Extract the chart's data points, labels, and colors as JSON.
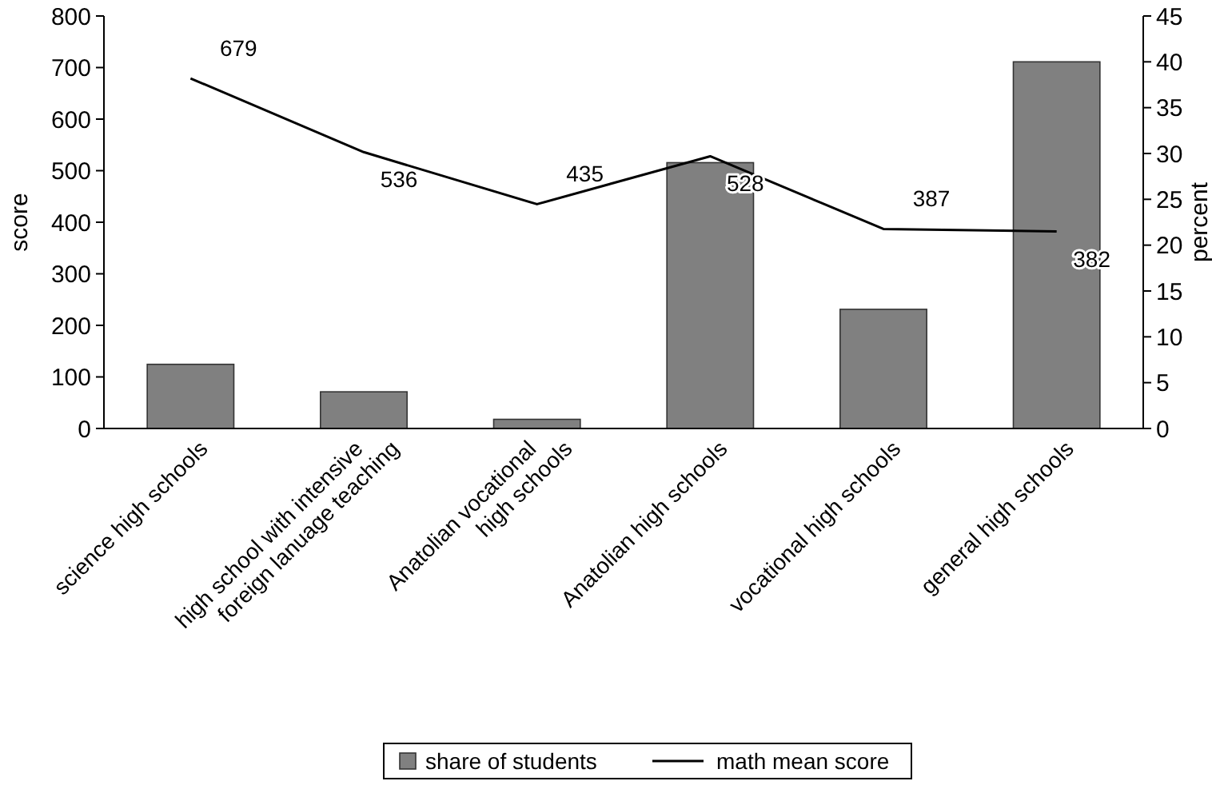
{
  "chart_data": {
    "type": "bar",
    "ylabel": "score",
    "y2label": "percent",
    "categories": [
      "science high schools",
      "high school with intensive\nforeign lanuage teaching",
      "Anatolian vocational\nhigh schools",
      "Anatolian high schools",
      "vocational high schools",
      "general high schools"
    ],
    "series": [
      {
        "name": "share of students",
        "axis": "y2",
        "color": "#808080",
        "values": [
          7,
          4,
          1,
          29,
          13,
          40
        ]
      },
      {
        "name": "math mean score",
        "type": "line",
        "color": "#000000",
        "values": [
          679,
          536,
          435,
          528,
          387,
          382
        ],
        "value_labels": [
          "679",
          "536",
          "435",
          "528",
          "387",
          "382"
        ]
      }
    ],
    "ylim": [
      0,
      800
    ],
    "yticks": [
      0,
      100,
      200,
      300,
      400,
      500,
      600,
      700,
      800
    ],
    "y2lim": [
      0,
      45
    ],
    "y2ticks": [
      0,
      5,
      10,
      15,
      20,
      25,
      30,
      35,
      40,
      45
    ],
    "grid": false,
    "legend": "bottom",
    "marker": "none"
  }
}
